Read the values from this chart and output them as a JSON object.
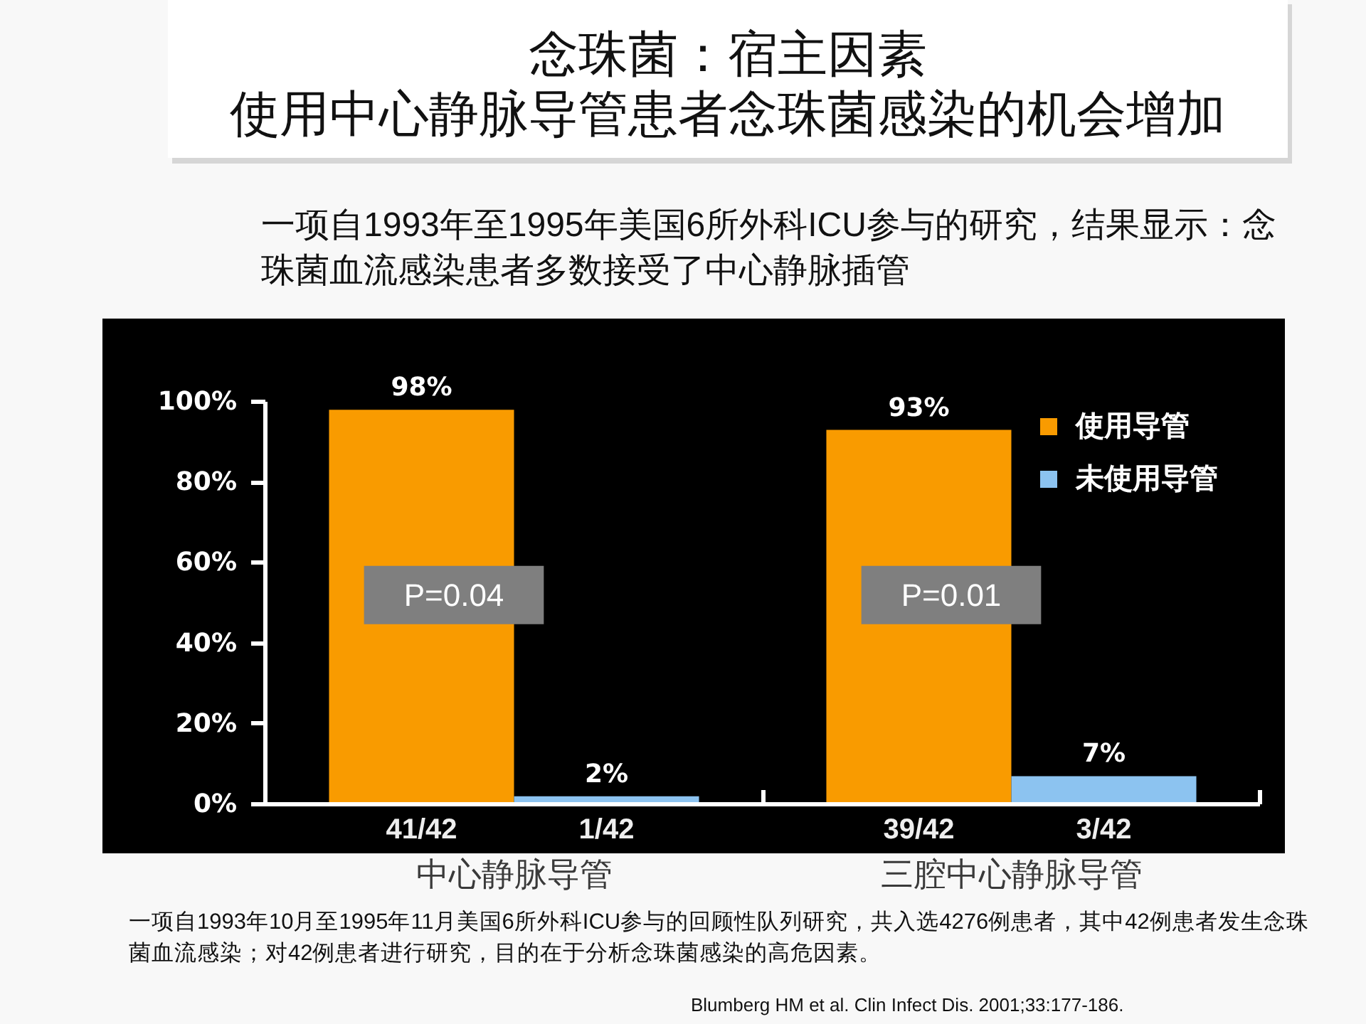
{
  "chart_data": {
    "type": "bar",
    "title": "念珠菌：宿主因素",
    "subtitle": "使用中心静脉导管患者念珠菌感染的机会增加",
    "categories": [
      "中心静脉导管",
      "三腔中心静脉导管"
    ],
    "series": [
      {
        "name": "使用导管",
        "color": "#f99b00",
        "values": [
          98,
          93
        ],
        "value_labels": [
          "98%",
          "93%"
        ]
      },
      {
        "name": "未使用导管",
        "color": "#8cc3f0",
        "values": [
          2,
          7
        ],
        "value_labels": [
          "2%",
          "7%"
        ]
      }
    ],
    "ylim": [
      0,
      100
    ],
    "yticks": [
      {
        "value": 0,
        "label": "0%"
      },
      {
        "value": 20,
        "label": "20%"
      },
      {
        "value": 40,
        "label": "40%"
      },
      {
        "value": 60,
        "label": "60%"
      },
      {
        "value": 80,
        "label": "80%"
      },
      {
        "value": 100,
        "label": "100%"
      }
    ],
    "legend": "top right",
    "annotations": [
      {
        "text": "P=0.04",
        "x": "中心静脉导管",
        "y": 52
      },
      {
        "text": "P=0.01",
        "x": "三腔中心静脉导管",
        "y": 52
      },
      {
        "text": "41/42",
        "x": "中心静脉导管",
        "y": 0
      },
      {
        "text": "1/42",
        "x": "中心静脉导管",
        "y": 0
      },
      {
        "text": "39/42",
        "x": "三腔中心静脉导管",
        "y": 0
      },
      {
        "text": "3/42",
        "x": "三腔中心静脉导管",
        "y": 0
      },
      "一项自1993年至1995年美国6所外科ICU参与的研究，结果显示：念珠菌血流感染患者多数接受了中心静脉插管",
      "一项自1993年10月至1995年11月美国6所外科ICU参与的回顾性队列研究，共入选4276例患者，其中42例患者发生念珠菌血流感染；对42例患者进行研究，目的在于分析念珠菌感染的高危因素。",
      "Blumberg HM et al. Clin Infect Dis. 2001;33:177-186."
    ]
  }
}
